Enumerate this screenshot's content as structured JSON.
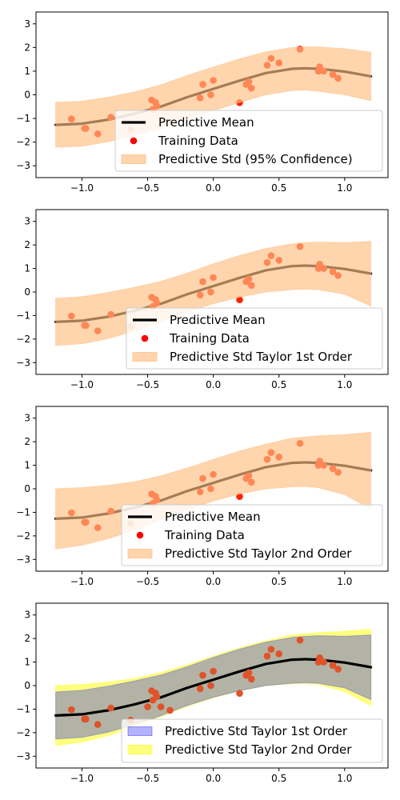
{
  "chart_data": [
    {
      "type": "line",
      "xlim": [
        -1.35,
        1.33
      ],
      "ylim": [
        -3.5,
        3.5
      ],
      "xticks": [
        -1.0,
        -0.5,
        0.0,
        0.5,
        1.0
      ],
      "xtick_labels": [
        "−1.0",
        "−0.5",
        "0.0",
        "0.5",
        "1.0"
      ],
      "yticks": [
        -3,
        -2,
        -1,
        0,
        1,
        2,
        3
      ],
      "ytick_labels": [
        "−3",
        "−2",
        "−1",
        "0",
        "1",
        "2",
        "3"
      ],
      "grid": false,
      "legend": {
        "placement": "lower-right",
        "entries": [
          {
            "label": "Predictive Mean",
            "kind": "line",
            "color": "#000000"
          },
          {
            "label": "Training Data",
            "kind": "marker",
            "color": "#ff0000"
          },
          {
            "label": "Predictive Std (95% Confidence)",
            "kind": "patch",
            "color": "#ffbe82"
          }
        ]
      },
      "series": [
        {
          "name": "Predictive Mean",
          "kind": "mean",
          "color": "#000000",
          "x": [
            -1.2,
            -1.0,
            -0.8,
            -0.6,
            -0.4,
            -0.2,
            0.0,
            0.2,
            0.4,
            0.6,
            0.7,
            0.8,
            1.0,
            1.2
          ],
          "y": [
            -1.27,
            -1.22,
            -1.05,
            -0.8,
            -0.5,
            -0.1,
            0.25,
            0.6,
            0.92,
            1.1,
            1.12,
            1.1,
            0.98,
            0.78
          ]
        },
        {
          "name": "Training Data",
          "kind": "points",
          "color": "#ff2200",
          "x": [
            -1.08,
            -0.98,
            -0.97,
            -0.88,
            -0.78,
            -0.63,
            -0.47,
            -0.46,
            -0.44,
            -0.43,
            -0.1,
            -0.08,
            -0.02,
            0.0,
            0.2,
            0.25,
            0.27,
            0.29,
            0.41,
            0.44,
            0.5,
            0.66,
            0.8,
            0.81,
            0.84,
            0.91,
            0.95
          ],
          "y": [
            -1.02,
            -1.42,
            -1.42,
            -1.65,
            -0.95,
            -1.47,
            -0.22,
            -0.62,
            -0.32,
            -0.47,
            -0.13,
            0.44,
            0.0,
            0.61,
            -0.33,
            0.44,
            0.55,
            0.28,
            1.25,
            1.54,
            1.35,
            1.93,
            1.0,
            1.18,
            1.0,
            0.86,
            0.7
          ]
        },
        {
          "name": "Predictive Std (95% Confidence)",
          "kind": "band",
          "color": "#ffbe82",
          "opacity": 0.65,
          "x": [
            -1.2,
            -1.0,
            -0.8,
            -0.6,
            -0.4,
            -0.2,
            0.0,
            0.2,
            0.4,
            0.6,
            0.7,
            0.8,
            1.0,
            1.2
          ],
          "lower": [
            -2.22,
            -2.17,
            -1.98,
            -1.72,
            -1.42,
            -1.02,
            -0.67,
            -0.32,
            0.0,
            0.18,
            0.2,
            0.15,
            0.0,
            -0.25
          ],
          "upper": [
            -0.32,
            -0.27,
            -0.1,
            0.12,
            0.42,
            0.82,
            1.17,
            1.52,
            1.82,
            2.0,
            2.03,
            2.02,
            1.95,
            1.8
          ]
        }
      ]
    },
    {
      "type": "line",
      "xlim": [
        -1.35,
        1.33
      ],
      "ylim": [
        -3.5,
        3.5
      ],
      "xticks": [
        -1.0,
        -0.5,
        0.0,
        0.5,
        1.0
      ],
      "xtick_labels": [
        "−1.0",
        "−0.5",
        "0.0",
        "0.5",
        "1.0"
      ],
      "yticks": [
        -3,
        -2,
        -1,
        0,
        1,
        2,
        3
      ],
      "ytick_labels": [
        "−3",
        "−2",
        "−1",
        "0",
        "1",
        "2",
        "3"
      ],
      "grid": false,
      "legend": {
        "placement": "lower-right",
        "entries": [
          {
            "label": "Predictive Mean",
            "kind": "line",
            "color": "#000000"
          },
          {
            "label": "Training Data",
            "kind": "marker",
            "color": "#ff0000"
          },
          {
            "label": "Predictive Std Taylor 1st Order",
            "kind": "patch",
            "color": "#ffbe82"
          }
        ]
      },
      "series": [
        {
          "name": "Predictive Mean",
          "kind": "mean",
          "color": "#000000",
          "x": [
            -1.2,
            -1.0,
            -0.8,
            -0.6,
            -0.4,
            -0.2,
            0.0,
            0.2,
            0.4,
            0.6,
            0.7,
            0.8,
            1.0,
            1.2
          ],
          "y": [
            -1.27,
            -1.22,
            -1.05,
            -0.8,
            -0.5,
            -0.1,
            0.25,
            0.6,
            0.92,
            1.1,
            1.12,
            1.1,
            0.98,
            0.78
          ]
        },
        {
          "name": "Training Data",
          "kind": "points",
          "color": "#ff2200",
          "x": [
            -1.08,
            -0.98,
            -0.97,
            -0.88,
            -0.78,
            -0.63,
            -0.47,
            -0.46,
            -0.44,
            -0.43,
            -0.1,
            -0.08,
            -0.02,
            0.0,
            0.2,
            0.25,
            0.27,
            0.29,
            0.41,
            0.44,
            0.5,
            0.66,
            0.8,
            0.81,
            0.84,
            0.91,
            0.95
          ],
          "y": [
            -1.02,
            -1.42,
            -1.42,
            -1.65,
            -0.95,
            -1.47,
            -0.22,
            -0.62,
            -0.32,
            -0.47,
            -0.13,
            0.44,
            0.0,
            0.61,
            -0.33,
            0.44,
            0.55,
            0.28,
            1.25,
            1.54,
            1.35,
            1.93,
            1.0,
            1.18,
            1.0,
            0.86,
            0.7
          ]
        },
        {
          "name": "Predictive Std Taylor 1st Order",
          "kind": "band",
          "color": "#ffbe82",
          "opacity": 0.65,
          "x": [
            -1.2,
            -1.0,
            -0.8,
            -0.6,
            -0.4,
            -0.2,
            0.0,
            0.2,
            0.4,
            0.6,
            0.7,
            0.8,
            1.0,
            1.2
          ],
          "lower": [
            -2.27,
            -2.2,
            -1.98,
            -1.65,
            -1.28,
            -0.85,
            -0.5,
            -0.22,
            0.0,
            0.1,
            0.12,
            0.1,
            -0.1,
            -0.6
          ],
          "upper": [
            -0.27,
            -0.2,
            -0.02,
            0.2,
            0.45,
            0.8,
            1.2,
            1.55,
            1.85,
            2.05,
            2.1,
            2.12,
            2.1,
            2.15
          ]
        }
      ]
    },
    {
      "type": "line",
      "xlim": [
        -1.35,
        1.33
      ],
      "ylim": [
        -3.5,
        3.5
      ],
      "xticks": [
        -1.0,
        -0.5,
        0.0,
        0.5,
        1.0
      ],
      "xtick_labels": [
        "−1.0",
        "−0.5",
        "0.0",
        "0.5",
        "1.0"
      ],
      "yticks": [
        -3,
        -2,
        -1,
        0,
        1,
        2,
        3
      ],
      "ytick_labels": [
        "−3",
        "−2",
        "−1",
        "0",
        "1",
        "2",
        "3"
      ],
      "grid": false,
      "legend": {
        "placement": "lower-right",
        "entries": [
          {
            "label": "Predictive Mean",
            "kind": "line",
            "color": "#000000"
          },
          {
            "label": "Training Data",
            "kind": "marker",
            "color": "#ff0000"
          },
          {
            "label": "Predictive Std Taylor 2nd Order",
            "kind": "patch",
            "color": "#ffbe82"
          }
        ]
      },
      "series": [
        {
          "name": "Predictive Mean",
          "kind": "mean",
          "color": "#000000",
          "x": [
            -1.2,
            -1.0,
            -0.8,
            -0.6,
            -0.4,
            -0.2,
            0.0,
            0.2,
            0.4,
            0.6,
            0.7,
            0.8,
            1.0,
            1.2
          ],
          "y": [
            -1.27,
            -1.22,
            -1.05,
            -0.8,
            -0.5,
            -0.1,
            0.25,
            0.6,
            0.92,
            1.1,
            1.12,
            1.1,
            0.98,
            0.78
          ]
        },
        {
          "name": "Training Data",
          "kind": "points",
          "color": "#ff2200",
          "x": [
            -1.08,
            -0.98,
            -0.97,
            -0.88,
            -0.78,
            -0.63,
            -0.47,
            -0.46,
            -0.44,
            -0.43,
            -0.1,
            -0.08,
            -0.02,
            0.0,
            0.2,
            0.25,
            0.27,
            0.29,
            0.41,
            0.44,
            0.5,
            0.66,
            0.8,
            0.81,
            0.84,
            0.91,
            0.95
          ],
          "y": [
            -1.02,
            -1.42,
            -1.42,
            -1.65,
            -0.95,
            -1.47,
            -0.22,
            -0.62,
            -0.32,
            -0.47,
            -0.13,
            0.44,
            0.0,
            0.61,
            -0.33,
            0.44,
            0.55,
            0.28,
            1.25,
            1.54,
            1.35,
            1.93,
            1.0,
            1.18,
            1.0,
            0.86,
            0.7
          ]
        },
        {
          "name": "Predictive Std Taylor 2nd Order",
          "kind": "band",
          "color": "#ffbe82",
          "opacity": 0.65,
          "x": [
            -1.2,
            -1.0,
            -0.8,
            -0.6,
            -0.4,
            -0.2,
            0.0,
            0.2,
            0.4,
            0.6,
            0.7,
            0.8,
            1.0,
            1.2
          ],
          "lower": [
            -2.55,
            -2.4,
            -2.12,
            -1.75,
            -1.32,
            -0.88,
            -0.52,
            -0.22,
            0.0,
            0.08,
            0.1,
            0.05,
            -0.25,
            -0.85
          ],
          "upper": [
            0.0,
            0.05,
            0.15,
            0.3,
            0.55,
            0.88,
            1.25,
            1.6,
            1.9,
            2.15,
            2.2,
            2.25,
            2.3,
            2.4
          ]
        }
      ]
    },
    {
      "type": "line",
      "xlim": [
        -1.35,
        1.33
      ],
      "ylim": [
        -3.5,
        3.5
      ],
      "xticks": [
        -1.0,
        -0.5,
        0.0,
        0.5,
        1.0
      ],
      "xtick_labels": [
        "−1.0",
        "−0.5",
        "0.0",
        "0.5",
        "1.0"
      ],
      "yticks": [
        -3,
        -2,
        -1,
        0,
        1,
        2,
        3
      ],
      "ytick_labels": [
        "−3",
        "−2",
        "−1",
        "0",
        "1",
        "2",
        "3"
      ],
      "grid": false,
      "legend": {
        "placement": "lower-right",
        "entries": [
          {
            "label": "Predictive Std Taylor 1st Order",
            "kind": "patch",
            "color": "#0000ff"
          },
          {
            "label": "Predictive Std Taylor 2nd Order",
            "kind": "patch",
            "color": "#ffff00"
          }
        ]
      },
      "series": [
        {
          "name": "Predictive Std Taylor 2nd Order",
          "kind": "band",
          "color": "#ffff00",
          "opacity": 0.5,
          "x": [
            -1.2,
            -1.0,
            -0.8,
            -0.6,
            -0.4,
            -0.2,
            0.0,
            0.2,
            0.4,
            0.6,
            0.7,
            0.8,
            1.0,
            1.2
          ],
          "lower": [
            -2.55,
            -2.4,
            -2.12,
            -1.75,
            -1.32,
            -0.88,
            -0.52,
            -0.22,
            0.0,
            0.08,
            0.1,
            0.05,
            -0.25,
            -0.85
          ],
          "upper": [
            0.0,
            0.05,
            0.15,
            0.3,
            0.55,
            0.88,
            1.25,
            1.6,
            1.9,
            2.15,
            2.2,
            2.25,
            2.3,
            2.4
          ]
        },
        {
          "name": "Predictive Std Taylor 1st Order",
          "kind": "band",
          "color": "#0000ff",
          "opacity": 0.3,
          "x": [
            -1.2,
            -1.0,
            -0.8,
            -0.6,
            -0.4,
            -0.2,
            0.0,
            0.2,
            0.4,
            0.6,
            0.7,
            0.8,
            1.0,
            1.2
          ],
          "lower": [
            -2.27,
            -2.2,
            -1.98,
            -1.65,
            -1.28,
            -0.85,
            -0.5,
            -0.22,
            0.0,
            0.1,
            0.12,
            0.1,
            -0.1,
            -0.6
          ],
          "upper": [
            -0.27,
            -0.2,
            -0.02,
            0.2,
            0.45,
            0.8,
            1.2,
            1.55,
            1.85,
            2.05,
            2.1,
            2.12,
            2.1,
            2.15
          ]
        },
        {
          "name": "Predictive Mean",
          "kind": "mean",
          "color": "#000000",
          "x": [
            -1.2,
            -1.0,
            -0.8,
            -0.6,
            -0.4,
            -0.2,
            0.0,
            0.2,
            0.4,
            0.6,
            0.7,
            0.8,
            1.0,
            1.2
          ],
          "y": [
            -1.27,
            -1.22,
            -1.05,
            -0.8,
            -0.5,
            -0.1,
            0.25,
            0.6,
            0.92,
            1.1,
            1.12,
            1.1,
            0.98,
            0.78
          ]
        },
        {
          "name": "Training Data",
          "kind": "points",
          "color": "#e0522a",
          "x": [
            -1.08,
            -0.98,
            -0.97,
            -0.88,
            -0.78,
            -0.63,
            -0.5,
            -0.47,
            -0.46,
            -0.44,
            -0.43,
            -0.4,
            -0.33,
            -0.1,
            -0.08,
            -0.02,
            0.0,
            0.2,
            0.25,
            0.27,
            0.29,
            0.41,
            0.44,
            0.5,
            0.66,
            0.8,
            0.81,
            0.84,
            0.91,
            0.95
          ],
          "y": [
            -1.02,
            -1.42,
            -1.42,
            -1.65,
            -0.95,
            -1.47,
            -0.9,
            -0.22,
            -0.62,
            -0.32,
            -0.47,
            -0.9,
            -1.05,
            -0.13,
            0.44,
            0.0,
            0.61,
            -0.33,
            0.44,
            0.55,
            0.28,
            1.25,
            1.54,
            1.35,
            1.93,
            1.0,
            1.18,
            1.0,
            0.86,
            0.7
          ]
        }
      ]
    }
  ]
}
